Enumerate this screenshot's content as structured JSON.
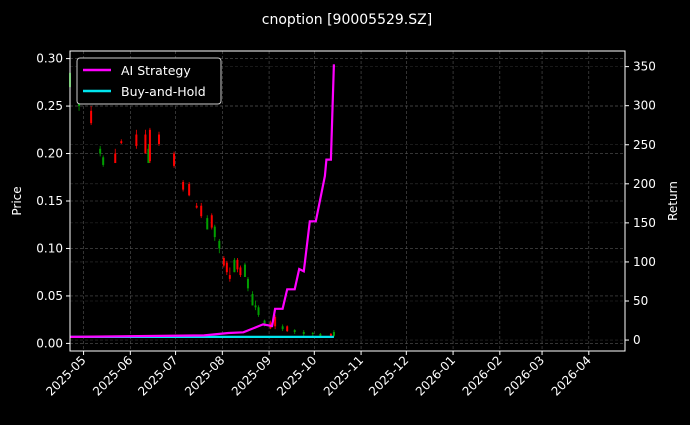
{
  "chart_data": {
    "type": "candlestick+line",
    "title": "cnoption [90005529.SZ]",
    "ylabel_left": "Price",
    "ylabel_right": "Return",
    "xlabel": "",
    "ylim_left": [
      -0.008,
      0.308
    ],
    "ylim_right": [
      -14,
      370
    ],
    "xlim": [
      "2025-04-22",
      "2026-04-25"
    ],
    "grid": true,
    "legend_position": "top-left",
    "left_ticks": [
      "0.00",
      "0.05",
      "0.10",
      "0.15",
      "0.20",
      "0.25",
      "0.30"
    ],
    "right_ticks": [
      "0",
      "50",
      "100",
      "150",
      "200",
      "250",
      "300",
      "350"
    ],
    "x_ticks": [
      "2025-05",
      "2025-06",
      "2025-07",
      "2025-08",
      "2025-09",
      "2025-10",
      "2025-11",
      "2025-12",
      "2026-01",
      "2026-02",
      "2026-03",
      "2026-04"
    ],
    "colors": {
      "up": "#00a000",
      "down": "#ff0000",
      "strategy": "#ff00ff",
      "buyhold": "#00e5ee",
      "grid": "#555555"
    },
    "candles": [
      [
        "2025-04-22",
        0.27,
        0.29,
        0.26,
        0.285
      ],
      [
        "2025-04-28",
        0.25,
        0.275,
        0.245,
        0.27
      ],
      [
        "2025-05-06",
        0.245,
        0.25,
        0.23,
        0.232
      ],
      [
        "2025-05-12",
        0.2,
        0.208,
        0.197,
        0.205
      ],
      [
        "2025-05-14",
        0.188,
        0.198,
        0.186,
        0.196
      ],
      [
        "2025-05-22",
        0.2,
        0.205,
        0.19,
        0.19
      ],
      [
        "2025-05-26",
        0.213,
        0.215,
        0.21,
        0.211
      ],
      [
        "2025-06-05",
        0.22,
        0.225,
        0.205,
        0.208
      ],
      [
        "2025-06-11",
        0.22,
        0.225,
        0.2,
        0.2
      ],
      [
        "2025-06-13",
        0.19,
        0.21,
        0.19,
        0.205
      ],
      [
        "2025-06-14",
        0.225,
        0.227,
        0.19,
        0.192
      ],
      [
        "2025-06-20",
        0.22,
        0.223,
        0.208,
        0.21
      ],
      [
        "2025-06-30",
        0.2,
        0.202,
        0.185,
        0.187
      ],
      [
        "2025-07-06",
        0.17,
        0.172,
        0.16,
        0.162
      ],
      [
        "2025-07-10",
        0.168,
        0.17,
        0.155,
        0.156
      ],
      [
        "2025-07-15",
        0.145,
        0.148,
        0.142,
        0.143
      ],
      [
        "2025-07-18",
        0.145,
        0.148,
        0.132,
        0.134
      ],
      [
        "2025-07-22",
        0.12,
        0.135,
        0.12,
        0.132
      ],
      [
        "2025-07-25",
        0.135,
        0.137,
        0.12,
        0.122
      ],
      [
        "2025-07-27",
        0.112,
        0.125,
        0.108,
        0.123
      ],
      [
        "2025-07-30",
        0.1,
        0.11,
        0.095,
        0.108
      ],
      [
        "2025-08-02",
        0.09,
        0.092,
        0.08,
        0.082
      ],
      [
        "2025-08-04",
        0.085,
        0.087,
        0.072,
        0.075
      ],
      [
        "2025-08-06",
        0.072,
        0.08,
        0.065,
        0.068
      ],
      [
        "2025-08-09",
        0.075,
        0.09,
        0.075,
        0.088
      ],
      [
        "2025-08-11",
        0.088,
        0.09,
        0.075,
        0.078
      ],
      [
        "2025-08-13",
        0.08,
        0.082,
        0.07,
        0.072
      ],
      [
        "2025-08-16",
        0.07,
        0.085,
        0.07,
        0.083
      ],
      [
        "2025-08-18",
        0.058,
        0.07,
        0.055,
        0.068
      ],
      [
        "2025-08-21",
        0.04,
        0.055,
        0.04,
        0.052
      ],
      [
        "2025-08-23",
        0.038,
        0.045,
        0.035,
        0.04
      ],
      [
        "2025-08-25",
        0.03,
        0.04,
        0.028,
        0.038
      ],
      [
        "2025-08-29",
        0.02,
        0.025,
        0.018,
        0.024
      ],
      [
        "2025-09-02",
        0.022,
        0.024,
        0.015,
        0.016
      ],
      [
        "2025-09-05",
        0.028,
        0.03,
        0.015,
        0.018
      ],
      [
        "2025-09-10",
        0.015,
        0.02,
        0.013,
        0.018
      ],
      [
        "2025-09-13",
        0.018,
        0.019,
        0.012,
        0.013
      ],
      [
        "2025-09-18",
        0.012,
        0.015,
        0.01,
        0.014
      ],
      [
        "2025-09-24",
        0.01,
        0.014,
        0.008,
        0.012
      ],
      [
        "2025-09-30",
        0.01,
        0.012,
        0.008,
        0.011
      ],
      [
        "2025-10-05",
        0.008,
        0.011,
        0.007,
        0.01
      ],
      [
        "2025-10-12",
        0.01,
        0.011,
        0.007,
        0.008
      ],
      [
        "2025-10-14",
        0.008,
        0.014,
        0.007,
        0.012
      ]
    ],
    "series": [
      {
        "name": "AI Strategy",
        "x": [
          "2025-04-22",
          "2025-07-20",
          "2025-08-05",
          "2025-08-15",
          "2025-08-28",
          "2025-09-03",
          "2025-09-05",
          "2025-09-10",
          "2025-09-13",
          "2025-09-18",
          "2025-09-21",
          "2025-09-24",
          "2025-09-28",
          "2025-10-02",
          "2025-10-08",
          "2025-10-09",
          "2025-10-12",
          "2025-10-14"
        ],
        "y": [
          4,
          6,
          9,
          10,
          20,
          18,
          40,
          40,
          65,
          65,
          91,
          88,
          152,
          152,
          210,
          231,
          231,
          353
        ]
      },
      {
        "name": "Buy-and-Hold",
        "x": [
          "2025-04-22",
          "2025-10-14"
        ],
        "y": [
          4,
          4
        ]
      }
    ]
  }
}
